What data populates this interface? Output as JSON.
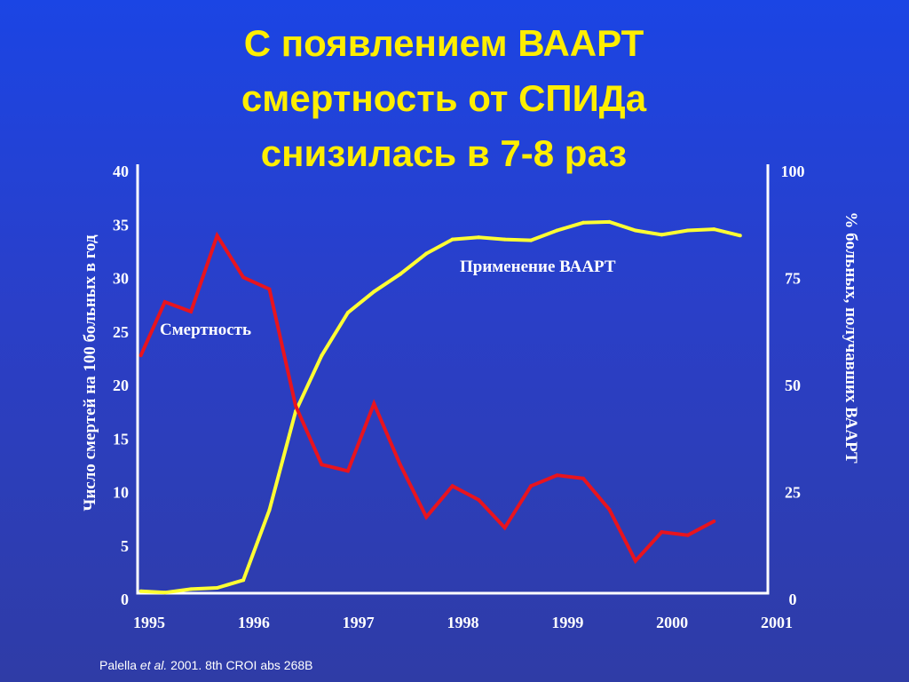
{
  "slide": {
    "title_lines": [
      "С появлением ВААРТ",
      "смертность от СПИДа",
      "снизилась в 7-8 раз"
    ],
    "citation": {
      "author": "Palella ",
      "etal": "et al.",
      "rest": " 2001. 8th CROI abs 268B"
    }
  },
  "colors": {
    "background_top": "#1b45e4",
    "background_bottom": "#2f3ca6",
    "title": "#ffee00",
    "mortality_series": "#e8141e",
    "haart_series": "#ffff33",
    "axes": "#ffffff"
  },
  "chart_data": {
    "type": "line",
    "title": "",
    "xlabel": "",
    "ylabel_left": "Число смертей на 100 больных в год",
    "ylabel_right": "% больных, получавших ВААРТ",
    "x_ticks": [
      "1995",
      "1996",
      "1997",
      "1998",
      "1999",
      "2000",
      "2001"
    ],
    "xlim": [
      1995,
      2001
    ],
    "ylim_left": [
      0,
      40
    ],
    "yticks_left": [
      "0",
      "5",
      "10",
      "15",
      "20",
      "25",
      "30",
      "35",
      "40"
    ],
    "ylim_right": [
      0,
      100
    ],
    "yticks_right": [
      "0",
      "25",
      "50",
      "75",
      "100"
    ],
    "grid": false,
    "series": [
      {
        "name": "Смертность",
        "axis": "left",
        "color": "#e8141e",
        "x": [
          1994.92,
          1995.15,
          1995.4,
          1995.65,
          1995.9,
          1996.15,
          1996.4,
          1996.65,
          1996.9,
          1997.15,
          1997.4,
          1997.65,
          1997.9,
          1998.15,
          1998.4,
          1998.65,
          1998.9,
          1999.15,
          1999.4,
          1999.65,
          1999.9,
          2000.15,
          2000.4
        ],
        "y": [
          22.8,
          27.8,
          26.9,
          34.0,
          30.1,
          29.0,
          18.1,
          12.6,
          12.0,
          18.3,
          12.6,
          7.7,
          10.6,
          9.3,
          6.7,
          10.6,
          11.6,
          11.3,
          8.4,
          3.6,
          6.3,
          6.0,
          7.3
        ]
      },
      {
        "name": "Применение ВААРТ",
        "axis": "right",
        "color": "#ffff33",
        "x": [
          1994.92,
          1995.15,
          1995.4,
          1995.65,
          1995.9,
          1996.15,
          1996.4,
          1996.65,
          1996.9,
          1997.15,
          1997.4,
          1997.65,
          1997.9,
          1998.15,
          1998.4,
          1998.65,
          1998.9,
          1999.15,
          1999.4,
          1999.65,
          1999.9,
          2000.15,
          2000.4,
          2000.65
        ],
        "y": [
          1.9,
          1.6,
          2.4,
          2.7,
          4.5,
          20.9,
          43.9,
          57.0,
          67.0,
          71.9,
          76.0,
          80.8,
          84.1,
          84.6,
          84.1,
          83.9,
          86.2,
          88.0,
          88.2,
          86.2,
          85.2,
          86.2,
          86.5,
          85.0
        ]
      }
    ],
    "annotations": [
      {
        "text": "Смертность",
        "series": "Смертность"
      },
      {
        "text": "Применение ВААРТ",
        "series": "Применение ВААРТ"
      }
    ]
  }
}
